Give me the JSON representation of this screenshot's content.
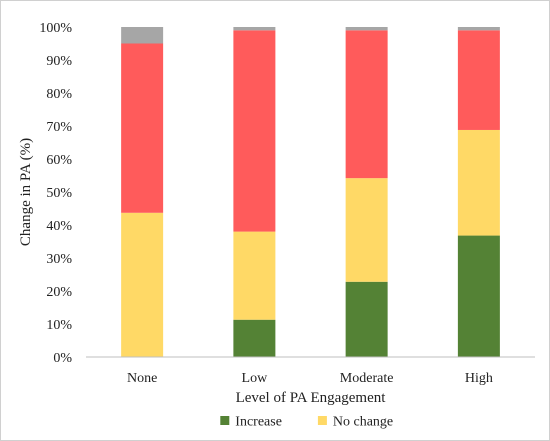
{
  "chart_data": {
    "type": "bar",
    "stacked": true,
    "categories": [
      "None",
      "Low",
      "Moderate",
      "High"
    ],
    "series": [
      {
        "name": "Increase",
        "color": "#548235",
        "values": [
          0,
          11.3,
          22.8,
          36.8
        ]
      },
      {
        "name": "No change",
        "color": "#ffd966",
        "values": [
          43.7,
          26.7,
          31.4,
          32.0
        ]
      },
      {
        "name": "",
        "color": "#ff5b5b",
        "values": [
          51.3,
          61.0,
          44.8,
          30.2
        ]
      },
      {
        "name": "",
        "color": "#a6a6a6",
        "values": [
          5.0,
          1.0,
          1.0,
          1.0
        ]
      }
    ],
    "xlabel": "Level of PA Engagement",
    "ylabel": "Change in PA (%)",
    "ylim": [
      0,
      100
    ],
    "yticks": [
      "0%",
      "10%",
      "20%",
      "30%",
      "40%",
      "50%",
      "60%",
      "70%",
      "80%",
      "90%",
      "100%"
    ],
    "grid": false,
    "legend_position": "bottom"
  }
}
